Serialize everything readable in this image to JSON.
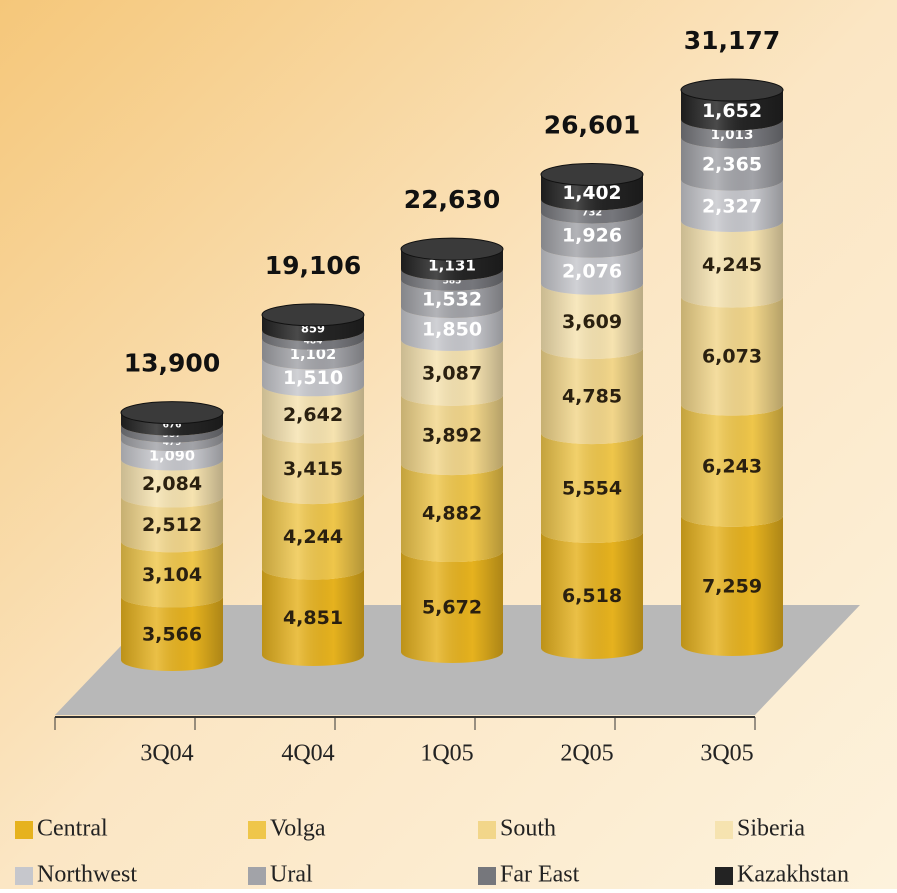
{
  "chart_data": {
    "type": "stacked_cylinder",
    "categories": [
      "3Q04",
      "4Q04",
      "1Q05",
      "2Q05",
      "3Q05"
    ],
    "totals": [
      13900,
      19106,
      22630,
      26601,
      31177
    ],
    "total_labels": [
      "13,900",
      "19,106",
      "22,630",
      "26,601",
      "31,177"
    ],
    "series": [
      {
        "name": "Central",
        "color": "#e6b21e",
        "values": [
          3566,
          4851,
          5672,
          6518,
          7259
        ],
        "value_labels": [
          "3,566",
          "4,851",
          "5,672",
          "6,518",
          "7,259"
        ]
      },
      {
        "name": "Volga",
        "color": "#efc64a",
        "values": [
          3104,
          4244,
          4882,
          5554,
          6243
        ],
        "value_labels": [
          "3,104",
          "4,244",
          "4,882",
          "5,554",
          "6,243"
        ]
      },
      {
        "name": "South",
        "color": "#f2d68a",
        "values": [
          2512,
          3415,
          3892,
          4785,
          6073
        ],
        "value_labels": [
          "2,512",
          "3,415",
          "3,892",
          "4,785",
          "6,073"
        ]
      },
      {
        "name": "Siberia",
        "color": "#f6e3b0",
        "values": [
          2084,
          2642,
          3087,
          3609,
          4245
        ],
        "value_labels": [
          "2,084",
          "2,642",
          "3,087",
          "3,609",
          "4,245"
        ]
      },
      {
        "name": "Northwest",
        "color": "#c6c7cc",
        "values": [
          1090,
          1510,
          1850,
          2076,
          2327
        ],
        "value_labels": [
          "1,090",
          "1,510",
          "1,850",
          "2,076",
          "2,327"
        ]
      },
      {
        "name": "Ural",
        "color": "#a2a3a8",
        "values": [
          479,
          1102,
          1532,
          1926,
          2365
        ],
        "value_labels": [
          "479",
          "1,102",
          "1,532",
          "1,926",
          "2,365"
        ]
      },
      {
        "name": "Far East",
        "color": "#76777c",
        "values": [
          387,
          484,
          585,
          732,
          1013
        ],
        "value_labels": [
          "387",
          "484",
          "585",
          "732",
          "1,013"
        ]
      },
      {
        "name": "Kazakhstan",
        "color": "#232323",
        "values": [
          676,
          859,
          1131,
          1402,
          1652
        ],
        "value_labels": [
          "676",
          "859",
          "1,131",
          "1,402",
          "1,652"
        ]
      }
    ]
  }
}
